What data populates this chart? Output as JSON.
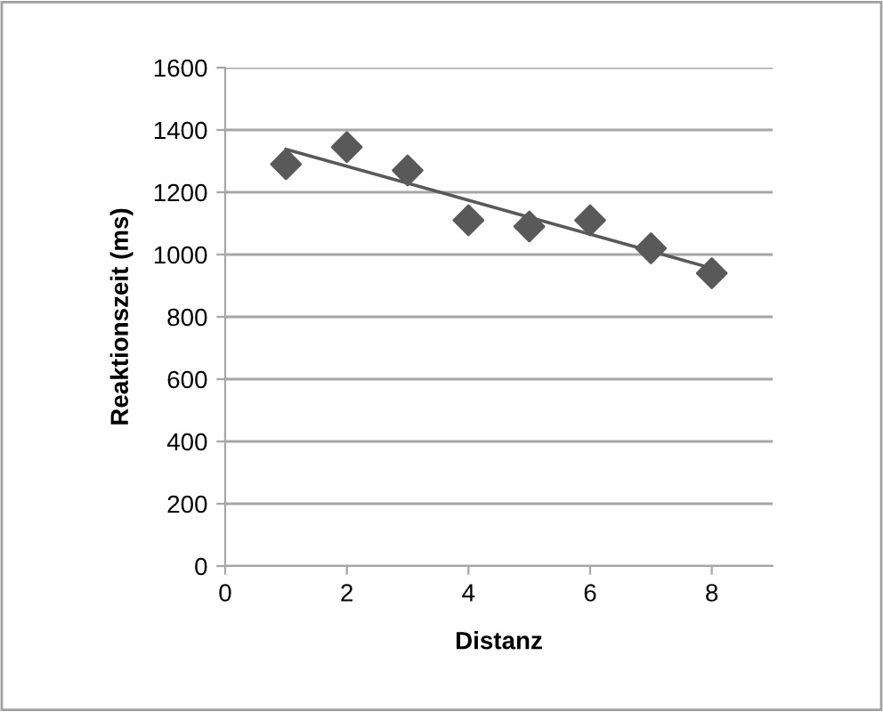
{
  "chart_data": {
    "type": "scatter",
    "xlabel": "Distanz",
    "ylabel": "Reaktionszeit (ms)",
    "x": [
      1,
      2,
      3,
      4,
      5,
      6,
      7,
      8
    ],
    "series": [
      {
        "color": "#595959",
        "marker": "diamond",
        "values": [
          1290,
          1345,
          1270,
          1110,
          1090,
          1110,
          1020,
          940
        ]
      },
      {
        "type": "line",
        "color": "#595959",
        "x": [
          1,
          8
        ],
        "values": [
          1338,
          956
        ],
        "marker": "none",
        "line_style": "solid"
      }
    ],
    "xlim": [
      0,
      9
    ],
    "ylim": [
      0,
      1600
    ],
    "xticks": [
      0,
      2,
      4,
      6,
      8
    ],
    "yticks": [
      0,
      200,
      400,
      600,
      800,
      1000,
      1200,
      1400,
      1600
    ],
    "grid": "y",
    "legend": false
  }
}
